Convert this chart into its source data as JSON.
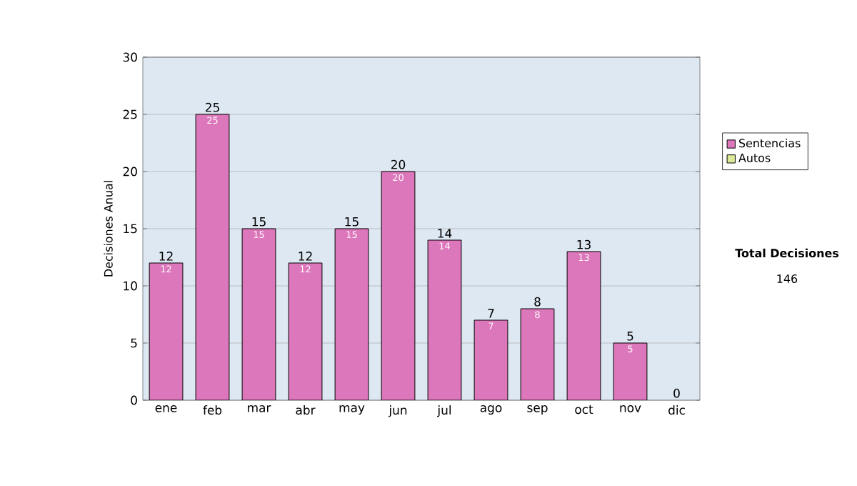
{
  "chart_data": {
    "type": "bar",
    "stacked": true,
    "ylabel": "Decisiones Anual",
    "categories": [
      "ene",
      "feb",
      "mar",
      "abr",
      "may",
      "jun",
      "jul",
      "ago",
      "sep",
      "oct",
      "nov",
      "dic"
    ],
    "series": [
      {
        "name": "Sentencias",
        "color": "#dd77bb",
        "values": [
          12,
          25,
          15,
          12,
          15,
          20,
          14,
          7,
          8,
          13,
          5,
          0
        ],
        "value_labels": [
          "12",
          "25",
          "15",
          "12",
          "15",
          "20",
          "14",
          "7",
          "8",
          "13",
          "5",
          null
        ]
      },
      {
        "name": "Autos",
        "color": "#dde899",
        "values": [
          0,
          0,
          0,
          0,
          0,
          0,
          0,
          0,
          0,
          0,
          0,
          0
        ]
      }
    ],
    "totals": [
      "12",
      "25",
      "15",
      "12",
      "15",
      "20",
      "14",
      "7",
      "8",
      "13",
      "5",
      "0"
    ],
    "ylim": [
      0,
      30
    ],
    "yticks": [
      0,
      5,
      10,
      15,
      20,
      25,
      30
    ],
    "grid": "y",
    "legend": "right",
    "annotations": [
      "Total Decisiones",
      "146"
    ]
  }
}
